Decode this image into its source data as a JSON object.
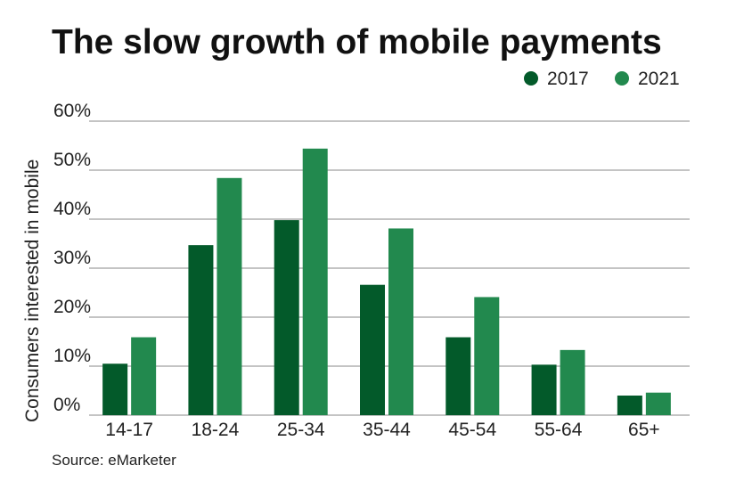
{
  "chart_data": {
    "type": "bar",
    "title": "The slow growth of mobile payments",
    "ylabel": "Consumers interested in mobile",
    "xlabel": "",
    "source": "Source: eMarketer",
    "categories": [
      "14-17",
      "18-24",
      "25-34",
      "35-44",
      "45-54",
      "55-64",
      "65+"
    ],
    "series": [
      {
        "name": "2017",
        "color": "#035a2a",
        "values": [
          10.5,
          34.7,
          39.8,
          26.6,
          15.9,
          10.3,
          4.0
        ]
      },
      {
        "name": "2021",
        "color": "#22894e",
        "values": [
          15.9,
          48.4,
          54.4,
          38.1,
          24.1,
          13.3,
          4.6
        ]
      }
    ],
    "ylim": [
      0,
      60
    ],
    "yticks": [
      0,
      10,
      20,
      30,
      40,
      50,
      60
    ],
    "ytick_labels": [
      "0%",
      "10%",
      "20%",
      "30%",
      "40%",
      "50%",
      "60%"
    ],
    "grid": true,
    "legend_position": "top-right"
  }
}
